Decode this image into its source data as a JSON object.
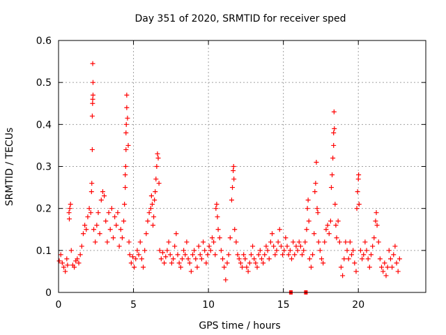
{
  "chart_data": {
    "type": "scatter",
    "title": "Day 351 of 2020, SRMTID for receiver sped",
    "xlabel": "GPS time / hours",
    "ylabel": "SRMTID / TECUs",
    "xlim": [
      0,
      24.5
    ],
    "ylim": [
      0,
      0.6
    ],
    "x_ticks": [
      0,
      5,
      10,
      15,
      20
    ],
    "x_tick_labels": [
      "0",
      "5",
      "10",
      "15",
      "20"
    ],
    "y_ticks": [
      0,
      0.1,
      0.2,
      0.3,
      0.4,
      0.5,
      0.6
    ],
    "y_tick_labels": [
      "0",
      "0.1",
      "0.2",
      "0.3",
      "0.4",
      "0.5",
      "0.6"
    ],
    "grid": true,
    "marker": "+",
    "series": [
      {
        "name": "SRMTID",
        "color": "#ff0000",
        "points": [
          [
            0.05,
            0.075
          ],
          [
            0.15,
            0.09
          ],
          [
            0.25,
            0.07
          ],
          [
            0.35,
            0.06
          ],
          [
            0.45,
            0.05
          ],
          [
            0.55,
            0.08
          ],
          [
            0.6,
            0.065
          ],
          [
            0.7,
            0.19
          ],
          [
            0.72,
            0.175
          ],
          [
            0.75,
            0.2
          ],
          [
            0.8,
            0.21
          ],
          [
            0.85,
            0.1
          ],
          [
            0.95,
            0.065
          ],
          [
            1.05,
            0.06
          ],
          [
            1.15,
            0.075
          ],
          [
            1.25,
            0.08
          ],
          [
            1.35,
            0.07
          ],
          [
            1.45,
            0.09
          ],
          [
            1.55,
            0.11
          ],
          [
            1.65,
            0.14
          ],
          [
            1.75,
            0.16
          ],
          [
            1.85,
            0.15
          ],
          [
            1.95,
            0.18
          ],
          [
            2.05,
            0.2
          ],
          [
            2.15,
            0.19
          ],
          [
            2.2,
            0.24
          ],
          [
            2.22,
            0.26
          ],
          [
            2.25,
            0.34
          ],
          [
            2.25,
            0.42
          ],
          [
            2.27,
            0.45
          ],
          [
            2.28,
            0.46
          ],
          [
            2.3,
            0.47
          ],
          [
            2.3,
            0.5
          ],
          [
            2.28,
            0.545
          ],
          [
            2.35,
            0.15
          ],
          [
            2.45,
            0.12
          ],
          [
            2.55,
            0.16
          ],
          [
            2.65,
            0.19
          ],
          [
            2.75,
            0.14
          ],
          [
            2.85,
            0.22
          ],
          [
            2.95,
            0.24
          ],
          [
            3.05,
            0.23
          ],
          [
            3.15,
            0.17
          ],
          [
            3.25,
            0.12
          ],
          [
            3.35,
            0.19
          ],
          [
            3.45,
            0.15
          ],
          [
            3.55,
            0.2
          ],
          [
            3.65,
            0.13
          ],
          [
            3.75,
            0.18
          ],
          [
            3.85,
            0.16
          ],
          [
            3.95,
            0.19
          ],
          [
            4.05,
            0.11
          ],
          [
            4.15,
            0.15
          ],
          [
            4.25,
            0.13
          ],
          [
            4.35,
            0.17
          ],
          [
            4.4,
            0.21
          ],
          [
            4.45,
            0.25
          ],
          [
            4.45,
            0.28
          ],
          [
            4.48,
            0.3
          ],
          [
            4.5,
            0.34
          ],
          [
            4.5,
            0.38
          ],
          [
            4.52,
            0.4
          ],
          [
            4.55,
            0.44
          ],
          [
            4.55,
            0.47
          ],
          [
            4.6,
            0.415
          ],
          [
            4.65,
            0.35
          ],
          [
            4.7,
            0.12
          ],
          [
            4.75,
            0.09
          ],
          [
            4.85,
            0.07
          ],
          [
            4.95,
            0.085
          ],
          [
            5.05,
            0.06
          ],
          [
            5.15,
            0.08
          ],
          [
            5.25,
            0.1
          ],
          [
            5.35,
            0.09
          ],
          [
            5.45,
            0.12
          ],
          [
            5.55,
            0.08
          ],
          [
            5.65,
            0.06
          ],
          [
            5.75,
            0.1
          ],
          [
            5.85,
            0.14
          ],
          [
            5.95,
            0.17
          ],
          [
            6.05,
            0.19
          ],
          [
            6.15,
            0.2
          ],
          [
            6.2,
            0.23
          ],
          [
            6.25,
            0.21
          ],
          [
            6.3,
            0.16
          ],
          [
            6.35,
            0.18
          ],
          [
            6.4,
            0.22
          ],
          [
            6.45,
            0.24
          ],
          [
            6.5,
            0.27
          ],
          [
            6.55,
            0.3
          ],
          [
            6.6,
            0.33
          ],
          [
            6.65,
            0.32
          ],
          [
            6.7,
            0.26
          ],
          [
            6.75,
            0.1
          ],
          [
            6.85,
            0.08
          ],
          [
            6.95,
            0.095
          ],
          [
            7.05,
            0.07
          ],
          [
            7.15,
            0.085
          ],
          [
            7.25,
            0.1
          ],
          [
            7.35,
            0.12
          ],
          [
            7.45,
            0.09
          ],
          [
            7.55,
            0.07
          ],
          [
            7.65,
            0.08
          ],
          [
            7.75,
            0.11
          ],
          [
            7.85,
            0.14
          ],
          [
            7.95,
            0.09
          ],
          [
            8.05,
            0.07
          ],
          [
            8.15,
            0.06
          ],
          [
            8.25,
            0.08
          ],
          [
            8.35,
            0.1
          ],
          [
            8.45,
            0.09
          ],
          [
            8.55,
            0.12
          ],
          [
            8.65,
            0.08
          ],
          [
            8.75,
            0.07
          ],
          [
            8.85,
            0.05
          ],
          [
            8.95,
            0.09
          ],
          [
            9.05,
            0.1
          ],
          [
            9.15,
            0.08
          ],
          [
            9.25,
            0.06
          ],
          [
            9.35,
            0.11
          ],
          [
            9.45,
            0.09
          ],
          [
            9.55,
            0.08
          ],
          [
            9.65,
            0.12
          ],
          [
            9.75,
            0.1
          ],
          [
            9.85,
            0.07
          ],
          [
            9.95,
            0.09
          ],
          [
            10.05,
            0.11
          ],
          [
            10.15,
            0.1
          ],
          [
            10.25,
            0.13
          ],
          [
            10.35,
            0.12
          ],
          [
            10.45,
            0.09
          ],
          [
            10.5,
            0.2
          ],
          [
            10.55,
            0.21
          ],
          [
            10.6,
            0.18
          ],
          [
            10.65,
            0.15
          ],
          [
            10.75,
            0.13
          ],
          [
            10.85,
            0.1
          ],
          [
            10.95,
            0.08
          ],
          [
            11.05,
            0.06
          ],
          [
            11.15,
            0.03
          ],
          [
            11.25,
            0.07
          ],
          [
            11.35,
            0.09
          ],
          [
            11.45,
            0.13
          ],
          [
            11.55,
            0.22
          ],
          [
            11.6,
            0.25
          ],
          [
            11.65,
            0.29
          ],
          [
            11.68,
            0.3
          ],
          [
            11.7,
            0.27
          ],
          [
            11.75,
            0.15
          ],
          [
            11.85,
            0.12
          ],
          [
            11.95,
            0.09
          ],
          [
            12.05,
            0.08
          ],
          [
            12.15,
            0.07
          ],
          [
            12.25,
            0.06
          ],
          [
            12.35,
            0.09
          ],
          [
            12.45,
            0.08
          ],
          [
            12.55,
            0.06
          ],
          [
            12.65,
            0.05
          ],
          [
            12.75,
            0.07
          ],
          [
            12.85,
            0.09
          ],
          [
            12.95,
            0.11
          ],
          [
            13.05,
            0.08
          ],
          [
            13.15,
            0.07
          ],
          [
            13.25,
            0.06
          ],
          [
            13.35,
            0.09
          ],
          [
            13.45,
            0.1
          ],
          [
            13.55,
            0.08
          ],
          [
            13.65,
            0.07
          ],
          [
            13.75,
            0.09
          ],
          [
            13.85,
            0.11
          ],
          [
            13.95,
            0.1
          ],
          [
            14.05,
            0.08
          ],
          [
            14.15,
            0.12
          ],
          [
            14.25,
            0.14
          ],
          [
            14.35,
            0.11
          ],
          [
            14.45,
            0.09
          ],
          [
            14.55,
            0.1
          ],
          [
            14.65,
            0.12
          ],
          [
            14.75,
            0.15
          ],
          [
            14.85,
            0.11
          ],
          [
            14.95,
            0.09
          ],
          [
            15.05,
            0.1
          ],
          [
            15.15,
            0.13
          ],
          [
            15.25,
            0.11
          ],
          [
            15.35,
            0.09
          ],
          [
            15.45,
            0.1
          ],
          [
            15.55,
            0.08
          ],
          [
            15.65,
            0.12
          ],
          [
            15.75,
            0.09
          ],
          [
            15.85,
            0.11
          ],
          [
            15.95,
            0.1
          ],
          [
            16.05,
            0.12
          ],
          [
            16.15,
            0.11
          ],
          [
            16.25,
            0.09
          ],
          [
            16.35,
            0.1
          ],
          [
            16.45,
            0.12
          ],
          [
            16.55,
            0.15
          ],
          [
            16.6,
            0.2
          ],
          [
            16.65,
            0.22
          ],
          [
            16.7,
            0.17
          ],
          [
            16.75,
            0.08
          ],
          [
            16.85,
            0.06
          ],
          [
            16.95,
            0.09
          ],
          [
            17.05,
            0.14
          ],
          [
            17.1,
            0.24
          ],
          [
            17.15,
            0.26
          ],
          [
            17.2,
            0.31
          ],
          [
            17.25,
            0.2
          ],
          [
            17.3,
            0.19
          ],
          [
            17.35,
            0.12
          ],
          [
            17.45,
            0.1
          ],
          [
            17.55,
            0.08
          ],
          [
            17.65,
            0.07
          ],
          [
            17.75,
            0.12
          ],
          [
            17.85,
            0.15
          ],
          [
            17.95,
            0.16
          ],
          [
            18.05,
            0.14
          ],
          [
            18.15,
            0.17
          ],
          [
            18.2,
            0.25
          ],
          [
            18.25,
            0.28
          ],
          [
            18.3,
            0.32
          ],
          [
            18.35,
            0.35
          ],
          [
            18.35,
            0.38
          ],
          [
            18.4,
            0.39
          ],
          [
            18.38,
            0.43
          ],
          [
            18.45,
            0.21
          ],
          [
            18.5,
            0.16
          ],
          [
            18.55,
            0.13
          ],
          [
            18.65,
            0.17
          ],
          [
            18.75,
            0.12
          ],
          [
            18.85,
            0.06
          ],
          [
            18.95,
            0.04
          ],
          [
            19.05,
            0.08
          ],
          [
            19.15,
            0.12
          ],
          [
            19.25,
            0.1
          ],
          [
            19.35,
            0.08
          ],
          [
            19.45,
            0.12
          ],
          [
            19.55,
            0.09
          ],
          [
            19.65,
            0.1
          ],
          [
            19.75,
            0.07
          ],
          [
            19.85,
            0.05
          ],
          [
            19.9,
            0.2
          ],
          [
            19.95,
            0.24
          ],
          [
            20.0,
            0.27
          ],
          [
            20.02,
            0.28
          ],
          [
            20.05,
            0.21
          ],
          [
            20.15,
            0.1
          ],
          [
            20.25,
            0.08
          ],
          [
            20.35,
            0.09
          ],
          [
            20.45,
            0.12
          ],
          [
            20.55,
            0.1
          ],
          [
            20.65,
            0.08
          ],
          [
            20.75,
            0.06
          ],
          [
            20.85,
            0.09
          ],
          [
            20.95,
            0.11
          ],
          [
            21.05,
            0.13
          ],
          [
            21.15,
            0.17
          ],
          [
            21.2,
            0.19
          ],
          [
            21.25,
            0.16
          ],
          [
            21.35,
            0.12
          ],
          [
            21.45,
            0.08
          ],
          [
            21.55,
            0.06
          ],
          [
            21.65,
            0.05
          ],
          [
            21.75,
            0.07
          ],
          [
            21.85,
            0.04
          ],
          [
            21.95,
            0.06
          ],
          [
            22.05,
            0.1
          ],
          [
            22.15,
            0.08
          ],
          [
            22.25,
            0.06
          ],
          [
            22.35,
            0.09
          ],
          [
            22.45,
            0.11
          ],
          [
            22.55,
            0.07
          ],
          [
            22.65,
            0.05
          ],
          [
            22.75,
            0.08
          ]
        ]
      }
    ],
    "gap_markers_x": [
      15.5,
      16.5
    ]
  }
}
